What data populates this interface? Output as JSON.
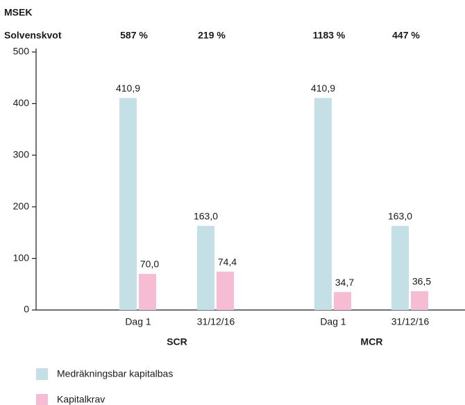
{
  "chart_data": {
    "type": "bar",
    "y_label": "MSEK",
    "categories": [
      "Dag 1",
      "31/12/16",
      "Dag 1",
      "31/12/16"
    ],
    "groups": [
      "SCR",
      "MCR"
    ],
    "ratio_title": "Solvenskvot",
    "ratio_labels": [
      "587 %",
      "219 %",
      "1183 %",
      "447 %"
    ],
    "series": [
      {
        "name": "Medräkningsbar kapitalbas",
        "color": "#c5dfe6",
        "values": [
          410.9,
          163.0,
          410.9,
          163.0
        ],
        "value_labels": [
          "410,9",
          "163,0",
          "410,9",
          "163,0"
        ]
      },
      {
        "name": "Kapitalkrav",
        "color": "#f5bcd3",
        "values": [
          70.0,
          74.4,
          34.7,
          36.5
        ],
        "value_labels": [
          "70,0",
          "74,4",
          "34,7",
          "36,5"
        ]
      }
    ],
    "ylim": [
      0,
      500
    ],
    "yticks": [
      0,
      100,
      200,
      300,
      400,
      500
    ],
    "legend": "bottom-left"
  }
}
